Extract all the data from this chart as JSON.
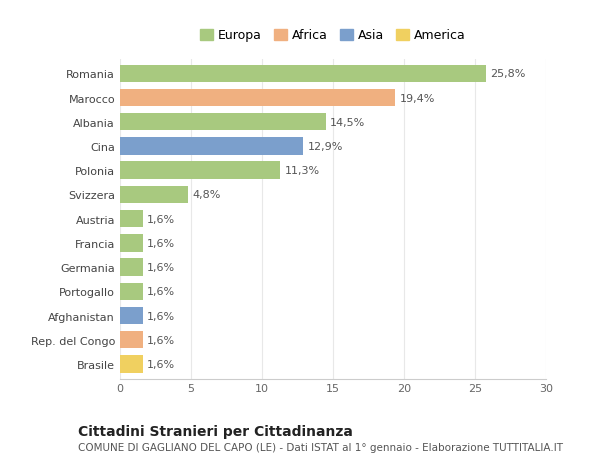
{
  "categories": [
    "Romania",
    "Marocco",
    "Albania",
    "Cina",
    "Polonia",
    "Svizzera",
    "Austria",
    "Francia",
    "Germania",
    "Portogallo",
    "Afghanistan",
    "Rep. del Congo",
    "Brasile"
  ],
  "values": [
    25.8,
    19.4,
    14.5,
    12.9,
    11.3,
    4.8,
    1.6,
    1.6,
    1.6,
    1.6,
    1.6,
    1.6,
    1.6
  ],
  "labels": [
    "25,8%",
    "19,4%",
    "14,5%",
    "12,9%",
    "11,3%",
    "4,8%",
    "1,6%",
    "1,6%",
    "1,6%",
    "1,6%",
    "1,6%",
    "1,6%",
    "1,6%"
  ],
  "colors": [
    "#a8c97f",
    "#f0b080",
    "#a8c97f",
    "#7b9fcc",
    "#a8c97f",
    "#a8c97f",
    "#a8c97f",
    "#a8c97f",
    "#a8c97f",
    "#a8c97f",
    "#7b9fcc",
    "#f0b080",
    "#f0d060"
  ],
  "legend_labels": [
    "Europa",
    "Africa",
    "Asia",
    "America"
  ],
  "legend_colors": [
    "#a8c97f",
    "#f0b080",
    "#7b9fcc",
    "#f0d060"
  ],
  "title": "Cittadini Stranieri per Cittadinanza",
  "subtitle": "COMUNE DI GAGLIANO DEL CAPO (LE) - Dati ISTAT al 1° gennaio - Elaborazione TUTTITALIA.IT",
  "xlim": [
    0,
    30
  ],
  "xticks": [
    0,
    5,
    10,
    15,
    20,
    25,
    30
  ],
  "background_color": "#ffffff",
  "grid_color": "#e8e8e8",
  "bar_height": 0.72,
  "title_fontsize": 10,
  "subtitle_fontsize": 7.5,
  "label_fontsize": 8,
  "tick_fontsize": 8,
  "legend_fontsize": 9
}
